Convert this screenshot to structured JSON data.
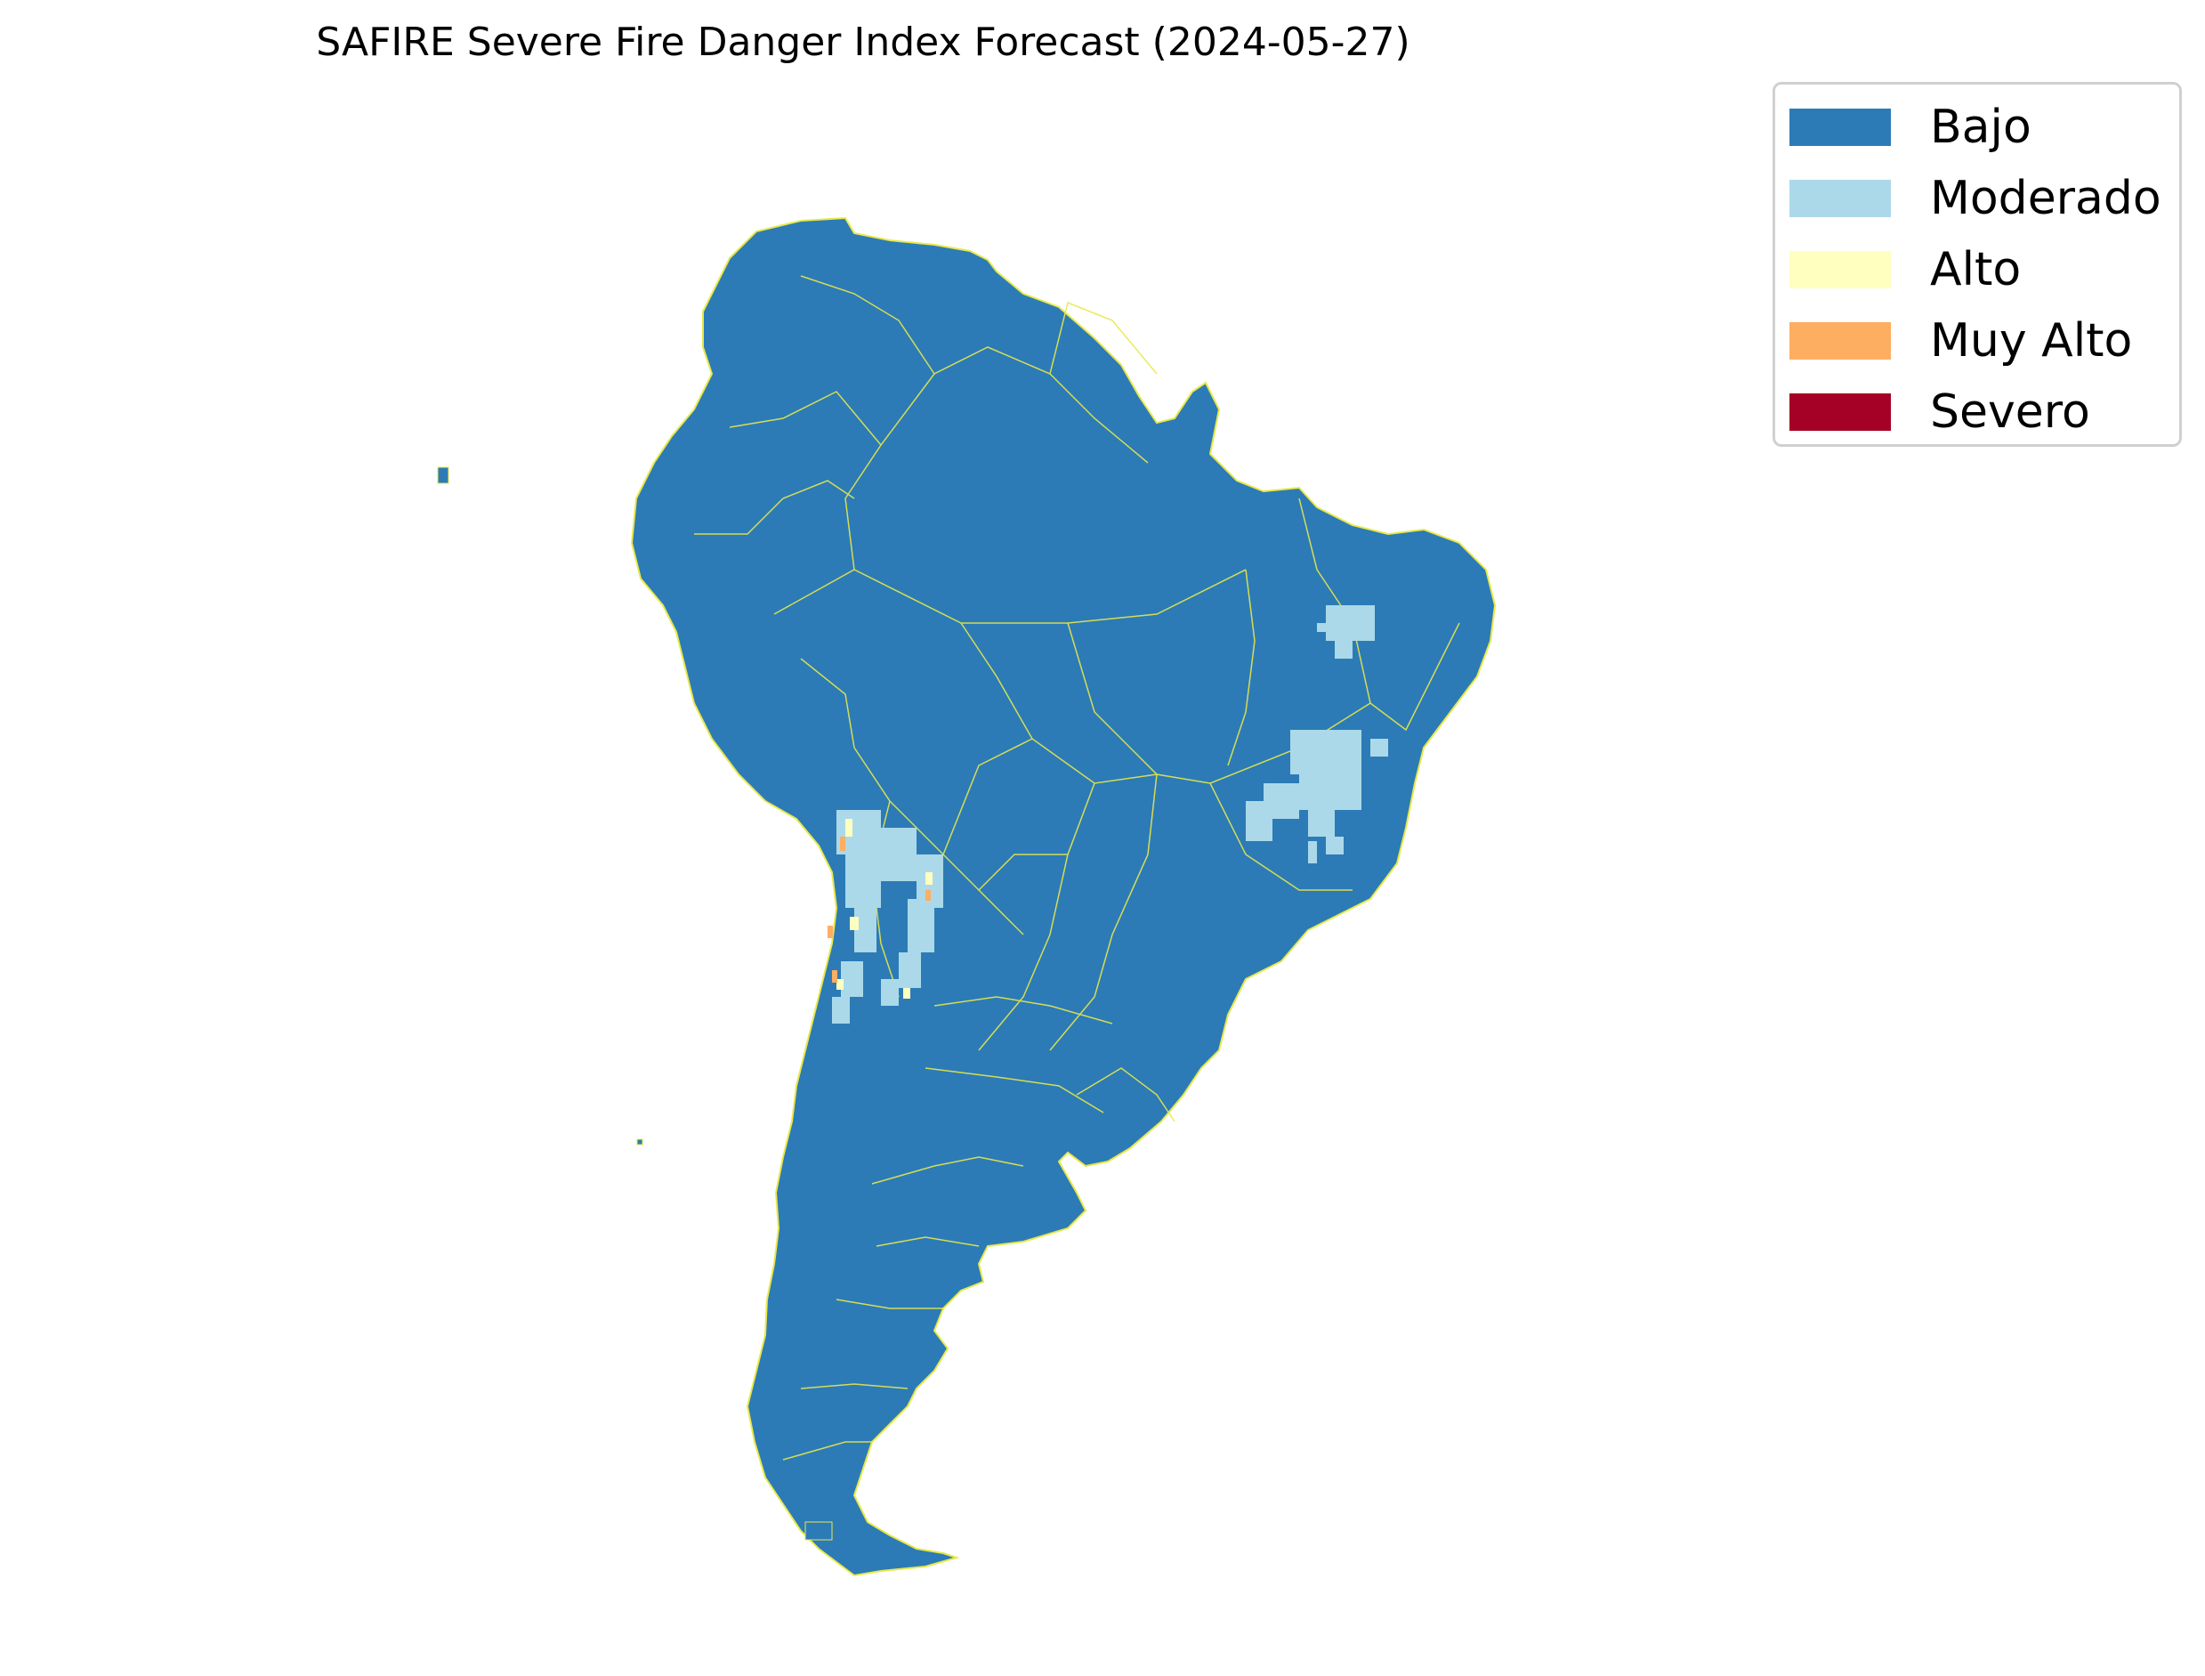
{
  "title": "SAFIRE Severe Fire Danger Index Forecast (2024-05-27)",
  "legend": {
    "placement": "upper-right, outside map",
    "items": [
      {
        "label": "Bajo",
        "color": "#2c7bb6"
      },
      {
        "label": "Moderado",
        "color": "#abd9e9"
      },
      {
        "label": "Alto",
        "color": "#ffffbf"
      },
      {
        "label": "Muy Alto",
        "color": "#fdae61"
      },
      {
        "label": "Severo",
        "color": "#a50026"
      }
    ]
  },
  "map": {
    "region": "South America",
    "dominant_class": "Bajo",
    "boundary_color": "#e8e84a",
    "highlighted_classes": [
      "Moderado",
      "Alto",
      "Muy Alto"
    ]
  }
}
